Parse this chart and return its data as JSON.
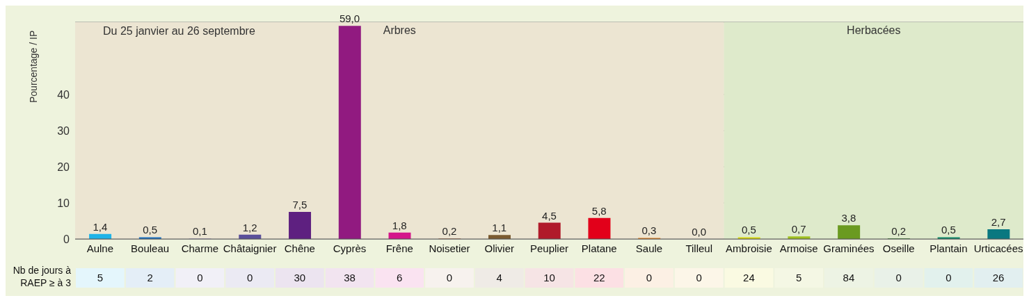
{
  "chart_data": [
    {
      "type": "bar",
      "ylabel": "Pourcentage / IP",
      "categories": [
        "Aulne",
        "Bouleau",
        "Charme",
        "Châtaignier",
        "Chêne",
        "Cyprès",
        "Frêne",
        "Noisetier",
        "Olivier",
        "Peuplier",
        "Platane",
        "Saule",
        "Tilleul",
        "Ambroisie",
        "Armoise",
        "Graminées",
        "Oseille",
        "Plantain",
        "Urticacées"
      ],
      "values": [
        1.4,
        0.5,
        0.1,
        1.2,
        7.5,
        59.0,
        1.8,
        0.2,
        1.1,
        4.5,
        5.8,
        0.3,
        0.0,
        0.5,
        0.7,
        3.8,
        0.2,
        0.5,
        2.7
      ],
      "colors": [
        "#1fb3e8",
        "#1f72c0",
        "#8c80c0",
        "#5a4f9a",
        "#5e2080",
        "#911a80",
        "#d4168a",
        "#c09070",
        "#7a5a30",
        "#b01a2a",
        "#e2001a",
        "#e8801a",
        "#e8b040",
        "#d8d810",
        "#a0c020",
        "#6a9a20",
        "#4a8a40",
        "#108a6a",
        "#0a7880"
      ],
      "value_labels": [
        "1,4",
        "0,5",
        "0,1",
        "1,2",
        "7,5",
        "59,0",
        "1,8",
        "0,2",
        "1,1",
        "4,5",
        "5,8",
        "0,3",
        "0,0",
        "0,5",
        "0,7",
        "3,8",
        "0,2",
        "0,5",
        "2,7"
      ],
      "ylim": [
        0,
        60
      ],
      "yticks": [
        0,
        10,
        20,
        30,
        40
      ],
      "grid": "y",
      "bands": [
        {
          "axis": "x",
          "from": "Aulne",
          "to": "Tilleul",
          "label": "Arbres",
          "color": "#ece5d2"
        },
        {
          "axis": "x",
          "from": "Ambroisie",
          "to": "Urticacées",
          "label": "Herbacées",
          "color": "#deeacb"
        }
      ],
      "annotations": [
        "Du 25 janvier au 26 septembre"
      ]
    },
    {
      "type": "other",
      "title": "Nb de jours à RAEP ≥ à 3",
      "categories": [
        null,
        null,
        null,
        null,
        null,
        null,
        null,
        null,
        null,
        null,
        null,
        null,
        null,
        null,
        null,
        null,
        null,
        null,
        null
      ],
      "values": [
        5,
        2,
        0,
        0,
        30,
        38,
        6,
        0,
        4,
        10,
        22,
        0,
        0,
        24,
        5,
        84,
        0,
        0,
        26
      ],
      "data_labels": true
    }
  ]
}
